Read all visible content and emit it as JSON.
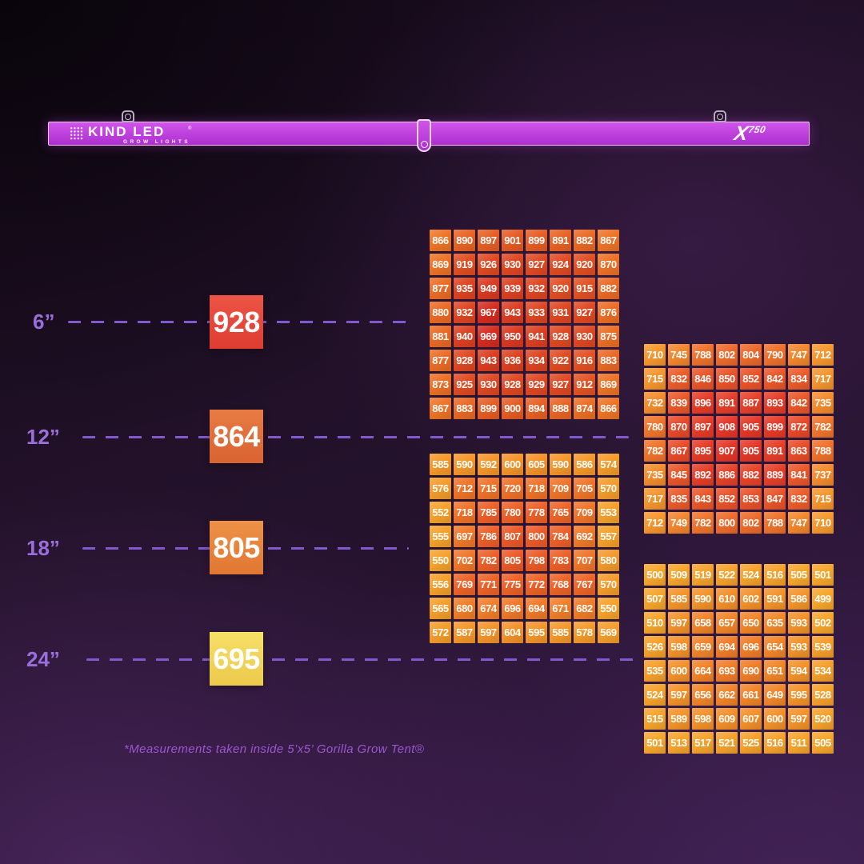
{
  "header": {
    "brand": "KIND LED",
    "brand_registered": "®",
    "brand_sub": "GROW LIGHTS",
    "model_x": "X",
    "model_num": "750"
  },
  "footnote": "*Measurements taken inside 5’x5’ Gorilla Grow Tent®",
  "colors": {
    "accent_label": "#9b6fdb",
    "dash_line": "#8159cc",
    "bar_fill_top": "#d055ea",
    "bar_fill_bottom": "#ad2ed0",
    "bar_border": "#efc0f7",
    "footnote_text": "#9c56cf",
    "cell_text": "#ffffff"
  },
  "chart_data": [
    {
      "type": "heatmap",
      "label": "6”",
      "summary": 928,
      "summary_color_top": "#ec5546",
      "summary_color_bottom": "#df3c30",
      "cell_color_edge": "#ee7426",
      "cell_color_center": "#d52b1f",
      "grid": [
        [
          866,
          890,
          897,
          901,
          899,
          891,
          882,
          867
        ],
        [
          869,
          919,
          926,
          930,
          927,
          924,
          920,
          870
        ],
        [
          877,
          935,
          949,
          939,
          932,
          920,
          915,
          882
        ],
        [
          880,
          932,
          967,
          943,
          933,
          931,
          927,
          876
        ],
        [
          881,
          940,
          969,
          950,
          941,
          928,
          930,
          875
        ],
        [
          877,
          928,
          943,
          936,
          934,
          922,
          916,
          883
        ],
        [
          873,
          925,
          930,
          928,
          929,
          927,
          912,
          869
        ],
        [
          867,
          883,
          899,
          900,
          894,
          888,
          874,
          866
        ]
      ]
    },
    {
      "type": "heatmap",
      "label": "12”",
      "summary": 864,
      "summary_color_top": "#e87b44",
      "summary_color_bottom": "#d96331",
      "cell_color_edge": "#f5982e",
      "cell_color_center": "#e43627",
      "grid": [
        [
          710,
          745,
          788,
          802,
          804,
          790,
          747,
          712
        ],
        [
          715,
          832,
          846,
          850,
          852,
          842,
          834,
          717
        ],
        [
          732,
          839,
          896,
          891,
          887,
          893,
          842,
          735
        ],
        [
          780,
          870,
          897,
          908,
          905,
          899,
          872,
          782
        ],
        [
          782,
          867,
          895,
          907,
          905,
          891,
          863,
          788
        ],
        [
          735,
          845,
          892,
          886,
          882,
          889,
          841,
          737
        ],
        [
          717,
          835,
          843,
          852,
          853,
          847,
          832,
          715
        ],
        [
          712,
          749,
          782,
          800,
          802,
          788,
          747,
          710
        ]
      ]
    },
    {
      "type": "heatmap",
      "label": "18”",
      "summary": 805,
      "summary_color_top": "#ee9247",
      "summary_color_bottom": "#e07632",
      "cell_color_edge": "#f5a22b",
      "cell_color_center": "#ec5827",
      "grid": [
        [
          585,
          590,
          592,
          600,
          605,
          590,
          586,
          574
        ],
        [
          576,
          712,
          715,
          720,
          718,
          709,
          705,
          570
        ],
        [
          552,
          718,
          785,
          780,
          778,
          765,
          709,
          553
        ],
        [
          555,
          697,
          786,
          807,
          800,
          784,
          692,
          557
        ],
        [
          550,
          702,
          782,
          805,
          798,
          783,
          707,
          580
        ],
        [
          556,
          769,
          771,
          775,
          772,
          768,
          767,
          570
        ],
        [
          565,
          680,
          674,
          696,
          694,
          671,
          682,
          550
        ],
        [
          572,
          587,
          597,
          604,
          595,
          585,
          578,
          569
        ]
      ]
    },
    {
      "type": "heatmap",
      "label": "24”",
      "summary": 695,
      "summary_color_top": "#f6df66",
      "summary_color_bottom": "#ecc94b",
      "cell_color_edge": "#f6a72c",
      "cell_color_center": "#f07c28",
      "grid": [
        [
          500,
          509,
          519,
          522,
          524,
          516,
          505,
          501
        ],
        [
          507,
          585,
          590,
          610,
          602,
          591,
          586,
          499
        ],
        [
          510,
          597,
          658,
          657,
          650,
          635,
          593,
          502
        ],
        [
          526,
          598,
          659,
          694,
          696,
          654,
          593,
          539
        ],
        [
          535,
          600,
          664,
          693,
          690,
          651,
          594,
          534
        ],
        [
          524,
          597,
          656,
          662,
          661,
          649,
          595,
          528
        ],
        [
          515,
          589,
          598,
          609,
          607,
          600,
          597,
          520
        ],
        [
          501,
          513,
          517,
          521,
          525,
          516,
          511,
          505
        ]
      ]
    }
  ]
}
